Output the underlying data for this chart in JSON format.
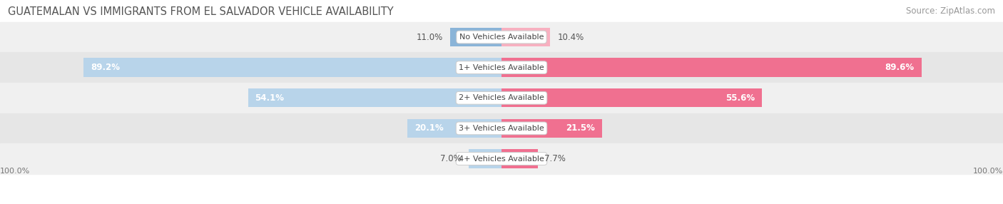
{
  "title": "GUATEMALAN VS IMMIGRANTS FROM EL SALVADOR VEHICLE AVAILABILITY",
  "source": "Source: ZipAtlas.com",
  "categories": [
    "No Vehicles Available",
    "1+ Vehicles Available",
    "2+ Vehicles Available",
    "3+ Vehicles Available",
    "4+ Vehicles Available"
  ],
  "guatemalan": [
    11.0,
    89.2,
    54.1,
    20.1,
    7.0
  ],
  "el_salvador": [
    10.4,
    89.6,
    55.6,
    21.5,
    7.7
  ],
  "guatemalan_color": "#8ab4d8",
  "el_salvador_color": "#f07090",
  "guatemalan_color_light": "#b8d4ea",
  "el_salvador_color_light": "#f8b0c0",
  "row_bg_even": "#f0f0f0",
  "row_bg_odd": "#e6e6e6",
  "max_value": 100.0,
  "bar_height": 0.62,
  "title_fontsize": 10.5,
  "source_fontsize": 8.5,
  "label_fontsize": 8.5,
  "category_fontsize": 8.0,
  "legend_fontsize": 8.5,
  "background_color": "#ffffff",
  "inside_label_threshold": 15
}
